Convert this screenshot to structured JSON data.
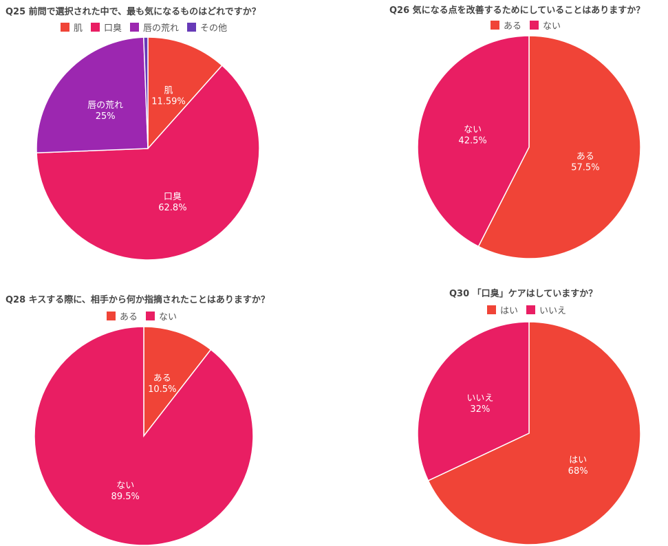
{
  "colors": {
    "red": "#f04437",
    "pink": "#e91e63",
    "purple": "#9c27b0",
    "violet": "#673ab7"
  },
  "chart_data": [
    {
      "type": "pie",
      "title": "Q25 前問で選択された中で、最も気になるものはどれですか？",
      "legend_placement": "top",
      "slices": [
        {
          "label": "肌",
          "value": 11.59,
          "display": "11.59%",
          "color": "#f04437"
        },
        {
          "label": "口臭",
          "value": 62.8,
          "display": "62.8%",
          "color": "#e91e63"
        },
        {
          "label": "唇の荒れ",
          "value": 25,
          "display": "25%",
          "color": "#9c27b0"
        },
        {
          "label": "その他",
          "value": 0.61,
          "display": "",
          "color": "#673ab7"
        }
      ]
    },
    {
      "type": "pie",
      "title": "Q26 気になる点を改善するためにしていることはありますか？",
      "legend_placement": "top",
      "slices": [
        {
          "label": "ある",
          "value": 57.5,
          "display": "57.5%",
          "color": "#f04437"
        },
        {
          "label": "ない",
          "value": 42.5,
          "display": "42.5%",
          "color": "#e91e63"
        }
      ]
    },
    {
      "type": "pie",
      "title": "Q28 キスする際に、相手から何か指摘されたことはありますか？",
      "legend_placement": "top",
      "slices": [
        {
          "label": "ある",
          "value": 10.5,
          "display": "10.5%",
          "color": "#f04437"
        },
        {
          "label": "ない",
          "value": 89.5,
          "display": "89.5%",
          "color": "#e91e63"
        }
      ]
    },
    {
      "type": "pie",
      "title": "Q30 「口臭」ケアはしていますか？",
      "legend_placement": "top",
      "slices": [
        {
          "label": "はい",
          "value": 68,
          "display": "68%",
          "color": "#f04437"
        },
        {
          "label": "いいえ",
          "value": 32,
          "display": "32%",
          "color": "#e91e63"
        }
      ]
    }
  ]
}
